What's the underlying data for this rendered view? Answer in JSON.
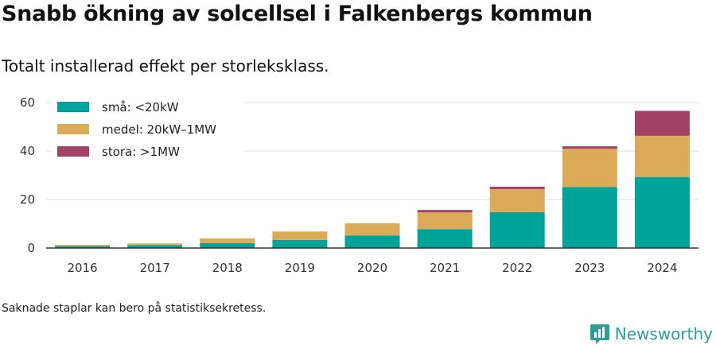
{
  "header": {
    "title": "Snabb ökning av solcellsel i Falkenbergs kommun",
    "subtitle": "Totalt installerad effekt per storleksklass."
  },
  "footer": {
    "note": "Saknade staplar kan bero på statistiksekretess.",
    "brand": "Newsworthy",
    "logo_icon": "bar-chart-logo-icon"
  },
  "colors": {
    "small": "#00a39a",
    "medium": "#dbab58",
    "large": "#a34166",
    "grid": "#dddddd",
    "axis": "#333333",
    "brand": "#2f9c95"
  },
  "chart_data": {
    "type": "bar",
    "stacked": true,
    "categories": [
      "2016",
      "2017",
      "2018",
      "2019",
      "2020",
      "2021",
      "2022",
      "2023",
      "2024"
    ],
    "series": [
      {
        "name": "små: <20kW",
        "color": "#00a39a",
        "values": [
          0.8,
          1.2,
          2.0,
          3.3,
          5.2,
          7.8,
          14.8,
          25.2,
          29.3
        ]
      },
      {
        "name": "medel: 20kW–1MW",
        "color": "#dbab58",
        "values": [
          0.5,
          0.7,
          2.0,
          3.5,
          5.0,
          6.9,
          9.5,
          15.8,
          17.0
        ]
      },
      {
        "name": "stora: >1MW",
        "color": "#a34166",
        "values": [
          0,
          0,
          0,
          0,
          0,
          1.0,
          1.0,
          1.0,
          10.3
        ]
      }
    ],
    "yticks": [
      0,
      20,
      40,
      60
    ],
    "ylim": [
      0,
      62
    ],
    "grid": true,
    "legend": "top-left"
  }
}
